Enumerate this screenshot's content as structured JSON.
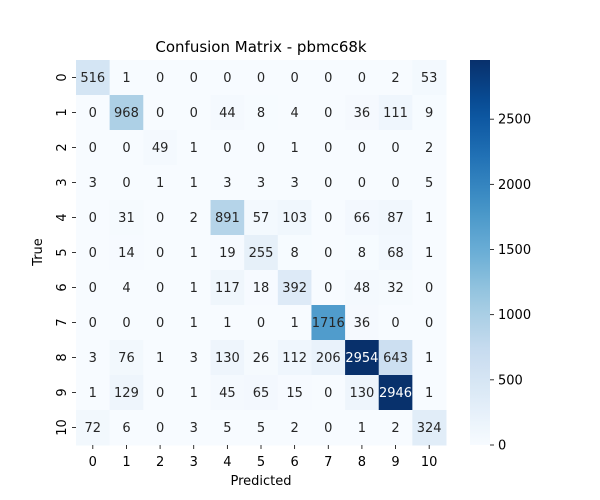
{
  "chart_data": {
    "type": "heatmap",
    "title": "Confusion Matrix - pbmc68k",
    "xlabel": "Predicted",
    "ylabel": "True",
    "x_categories": [
      "0",
      "1",
      "2",
      "3",
      "4",
      "5",
      "6",
      "7",
      "8",
      "9",
      "10"
    ],
    "y_categories": [
      "0",
      "1",
      "2",
      "3",
      "4",
      "5",
      "6",
      "7",
      "8",
      "9",
      "10"
    ],
    "values": [
      [
        516,
        1,
        0,
        0,
        0,
        0,
        0,
        0,
        0,
        2,
        53
      ],
      [
        0,
        968,
        0,
        0,
        44,
        8,
        4,
        0,
        36,
        111,
        9
      ],
      [
        0,
        0,
        49,
        1,
        0,
        0,
        1,
        0,
        0,
        0,
        2
      ],
      [
        3,
        0,
        1,
        1,
        3,
        3,
        3,
        0,
        0,
        0,
        5
      ],
      [
        0,
        31,
        0,
        2,
        891,
        57,
        103,
        0,
        66,
        87,
        1
      ],
      [
        0,
        14,
        0,
        1,
        19,
        255,
        8,
        0,
        8,
        68,
        1
      ],
      [
        0,
        4,
        0,
        1,
        117,
        18,
        392,
        0,
        48,
        32,
        0
      ],
      [
        0,
        0,
        0,
        1,
        1,
        0,
        1,
        1716,
        36,
        0,
        0
      ],
      [
        3,
        76,
        1,
        3,
        130,
        26,
        112,
        206,
        2954,
        643,
        1
      ],
      [
        1,
        129,
        0,
        1,
        45,
        65,
        15,
        0,
        130,
        2946,
        1
      ],
      [
        72,
        6,
        0,
        3,
        5,
        5,
        2,
        0,
        1,
        2,
        324
      ]
    ],
    "colormap": "Blues",
    "vmin": 0,
    "vmax": 2954,
    "colorbar_ticks": [
      0,
      500,
      1000,
      1500,
      2000,
      2500
    ],
    "grid": false
  }
}
